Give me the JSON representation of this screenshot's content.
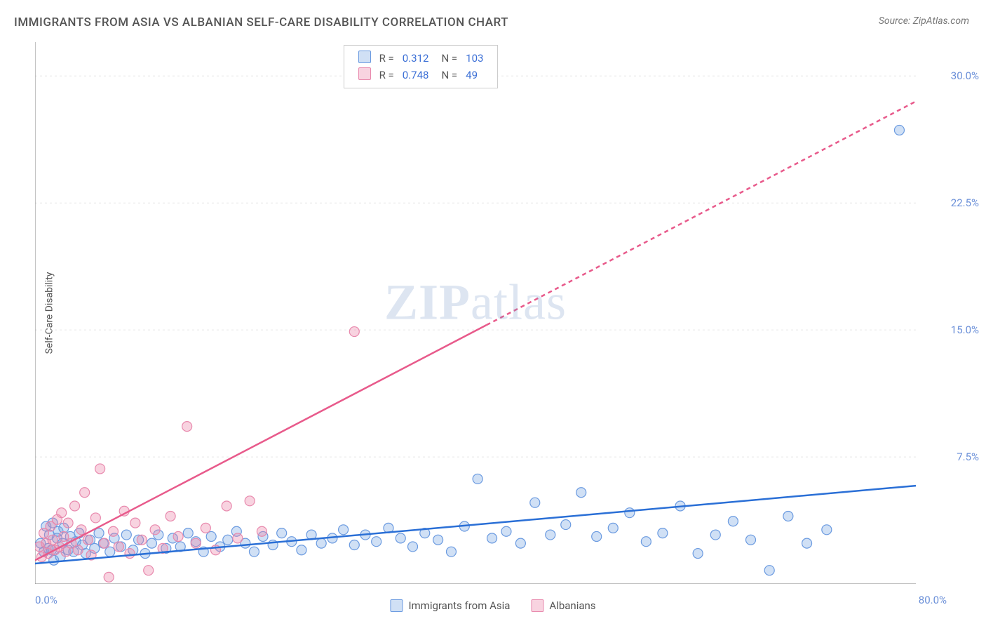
{
  "title": "IMMIGRANTS FROM ASIA VS ALBANIAN SELF-CARE DISABILITY CORRELATION CHART",
  "source": "Source: ZipAtlas.com",
  "ylabel": "Self-Care Disability",
  "watermark_zip": "ZIP",
  "watermark_atlas": "atlas",
  "chart": {
    "type": "scatter",
    "background_color": "#ffffff",
    "grid_color": "#e6e6e6",
    "axis_color": "#888888",
    "xlim": [
      0,
      80
    ],
    "ylim": [
      0,
      32
    ],
    "xtick_origin": "0.0%",
    "xtick_max": "80.0%",
    "xtick_positions": [
      0,
      10,
      20,
      30,
      40,
      50,
      60,
      70,
      80
    ],
    "ytick_labels": [
      "7.5%",
      "15.0%",
      "22.5%",
      "30.0%"
    ],
    "ytick_positions": [
      7.5,
      15.0,
      22.5,
      30.0
    ],
    "marker_radius": 7,
    "marker_stroke_width": 1.2,
    "trend_line_width": 2.5,
    "trend_dash": "6,5"
  },
  "series": [
    {
      "key": "asia",
      "label": "Immigrants from Asia",
      "fill_color": "rgba(120,165,225,0.35)",
      "stroke_color": "#6a9ae0",
      "line_color": "#2a6fd6",
      "R_label": "R =",
      "R_value": "0.312",
      "N_label": "N =",
      "N_value": "103",
      "trend": {
        "x1": 0,
        "y1": 1.2,
        "x2": 80,
        "y2": 5.8,
        "dash_after_x": null
      },
      "points": [
        [
          0.5,
          2.4
        ],
        [
          0.8,
          1.9
        ],
        [
          1.0,
          3.4
        ],
        [
          1.2,
          2.1
        ],
        [
          1.3,
          2.9
        ],
        [
          1.5,
          2.0
        ],
        [
          1.6,
          3.6
        ],
        [
          1.7,
          1.4
        ],
        [
          2.0,
          2.7
        ],
        [
          2.1,
          3.1
        ],
        [
          2.3,
          1.6
        ],
        [
          2.5,
          2.4
        ],
        [
          2.6,
          3.3
        ],
        [
          3.0,
          2.0
        ],
        [
          3.2,
          2.8
        ],
        [
          3.5,
          1.9
        ],
        [
          3.7,
          2.5
        ],
        [
          4.0,
          3.0
        ],
        [
          4.3,
          2.3
        ],
        [
          4.6,
          1.8
        ],
        [
          5.0,
          2.6
        ],
        [
          5.4,
          2.1
        ],
        [
          5.8,
          3.0
        ],
        [
          6.2,
          2.4
        ],
        [
          6.8,
          1.9
        ],
        [
          7.2,
          2.7
        ],
        [
          7.8,
          2.2
        ],
        [
          8.3,
          2.9
        ],
        [
          8.9,
          2.0
        ],
        [
          9.4,
          2.6
        ],
        [
          10.0,
          1.8
        ],
        [
          10.6,
          2.4
        ],
        [
          11.2,
          2.9
        ],
        [
          11.9,
          2.1
        ],
        [
          12.5,
          2.7
        ],
        [
          13.2,
          2.2
        ],
        [
          13.9,
          3.0
        ],
        [
          14.6,
          2.5
        ],
        [
          15.3,
          1.9
        ],
        [
          16.0,
          2.8
        ],
        [
          16.8,
          2.2
        ],
        [
          17.5,
          2.6
        ],
        [
          18.3,
          3.1
        ],
        [
          19.1,
          2.4
        ],
        [
          19.9,
          1.9
        ],
        [
          20.7,
          2.8
        ],
        [
          21.6,
          2.3
        ],
        [
          22.4,
          3.0
        ],
        [
          23.3,
          2.5
        ],
        [
          24.2,
          2.0
        ],
        [
          25.1,
          2.9
        ],
        [
          26.0,
          2.4
        ],
        [
          27.0,
          2.7
        ],
        [
          28.0,
          3.2
        ],
        [
          29.0,
          2.3
        ],
        [
          30.0,
          2.9
        ],
        [
          31.0,
          2.5
        ],
        [
          32.1,
          3.3
        ],
        [
          33.2,
          2.7
        ],
        [
          34.3,
          2.2
        ],
        [
          35.4,
          3.0
        ],
        [
          36.6,
          2.6
        ],
        [
          37.8,
          1.9
        ],
        [
          39.0,
          3.4
        ],
        [
          40.2,
          6.2
        ],
        [
          41.5,
          2.7
        ],
        [
          42.8,
          3.1
        ],
        [
          44.1,
          2.4
        ],
        [
          45.4,
          4.8
        ],
        [
          46.8,
          2.9
        ],
        [
          48.2,
          3.5
        ],
        [
          49.6,
          5.4
        ],
        [
          51.0,
          2.8
        ],
        [
          52.5,
          3.3
        ],
        [
          54.0,
          4.2
        ],
        [
          55.5,
          2.5
        ],
        [
          57.0,
          3.0
        ],
        [
          58.6,
          4.6
        ],
        [
          60.2,
          1.8
        ],
        [
          61.8,
          2.9
        ],
        [
          63.4,
          3.7
        ],
        [
          65.0,
          2.6
        ],
        [
          66.7,
          0.8
        ],
        [
          68.4,
          4.0
        ],
        [
          70.1,
          2.4
        ],
        [
          71.9,
          3.2
        ],
        [
          78.5,
          26.8
        ]
      ]
    },
    {
      "key": "albanians",
      "label": "Albanians",
      "fill_color": "rgba(235,130,165,0.35)",
      "stroke_color": "#e889ad",
      "line_color": "#e85a8b",
      "R_label": "R =",
      "R_value": "0.748",
      "N_label": "N =",
      "N_value": "49",
      "trend": {
        "x1": 0,
        "y1": 1.4,
        "x2": 80,
        "y2": 28.5,
        "dash_after_x": 41
      },
      "points": [
        [
          0.4,
          2.2
        ],
        [
          0.6,
          1.6
        ],
        [
          0.8,
          3.0
        ],
        [
          1.0,
          2.4
        ],
        [
          1.2,
          1.8
        ],
        [
          1.4,
          3.4
        ],
        [
          1.6,
          2.6
        ],
        [
          1.8,
          2.0
        ],
        [
          2.0,
          3.8
        ],
        [
          2.2,
          2.2
        ],
        [
          2.4,
          4.2
        ],
        [
          2.6,
          2.8
        ],
        [
          2.8,
          1.9
        ],
        [
          3.0,
          3.6
        ],
        [
          3.3,
          2.4
        ],
        [
          3.6,
          4.6
        ],
        [
          3.9,
          2.0
        ],
        [
          4.2,
          3.2
        ],
        [
          4.5,
          5.4
        ],
        [
          4.8,
          2.6
        ],
        [
          5.1,
          1.7
        ],
        [
          5.5,
          3.9
        ],
        [
          5.9,
          6.8
        ],
        [
          6.3,
          2.4
        ],
        [
          6.7,
          0.4
        ],
        [
          7.1,
          3.1
        ],
        [
          7.6,
          2.2
        ],
        [
          8.1,
          4.3
        ],
        [
          8.6,
          1.8
        ],
        [
          9.1,
          3.6
        ],
        [
          9.7,
          2.6
        ],
        [
          10.3,
          0.8
        ],
        [
          10.9,
          3.2
        ],
        [
          11.6,
          2.1
        ],
        [
          12.3,
          4.0
        ],
        [
          13.0,
          2.8
        ],
        [
          13.8,
          9.3
        ],
        [
          14.6,
          2.4
        ],
        [
          15.5,
          3.3
        ],
        [
          16.4,
          2.0
        ],
        [
          17.4,
          4.6
        ],
        [
          18.4,
          2.7
        ],
        [
          19.5,
          4.9
        ],
        [
          20.6,
          3.1
        ],
        [
          29.0,
          14.9
        ]
      ]
    }
  ],
  "bottom_legend": [
    {
      "label_key": "series.0.label",
      "fill": "rgba(120,165,225,0.35)",
      "stroke": "#6a9ae0"
    },
    {
      "label_key": "series.1.label",
      "fill": "rgba(235,130,165,0.35)",
      "stroke": "#e889ad"
    }
  ]
}
